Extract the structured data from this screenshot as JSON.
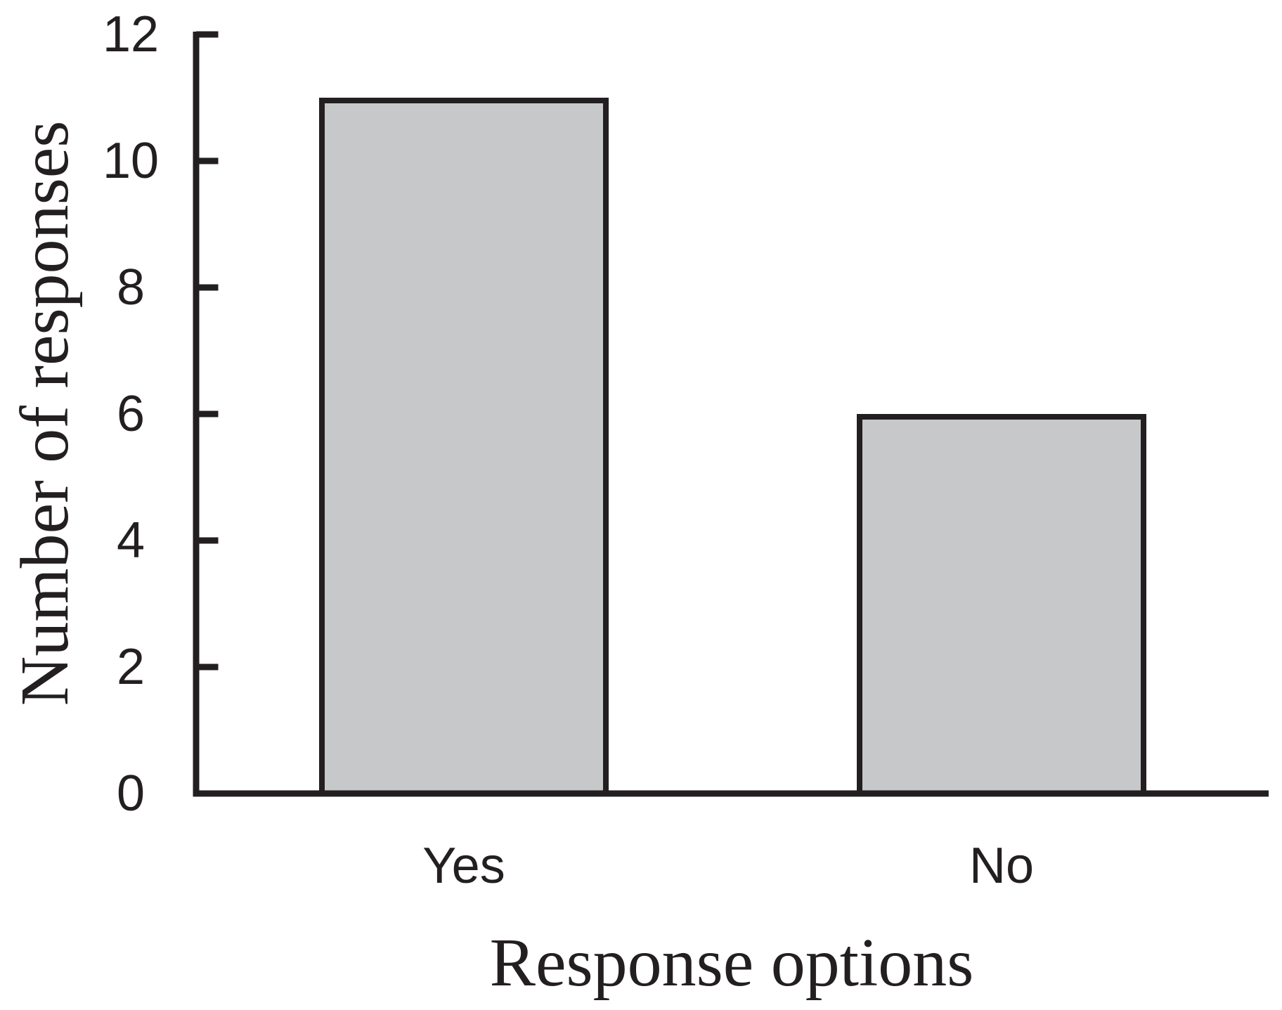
{
  "figure": {
    "background": "#ffffff",
    "ink": "#231f20"
  },
  "chart_data": {
    "type": "bar",
    "title": "",
    "categories": [
      "Yes",
      "No"
    ],
    "values": [
      11,
      6
    ],
    "xlabel": "Response options",
    "ylabel": "Number of responses",
    "yticks": [
      0,
      2,
      4,
      6,
      8,
      10,
      12
    ],
    "ylim": [
      0,
      12
    ],
    "grid": false,
    "legend": "none",
    "bar_fill": "#c7c8ca",
    "bar_border": "#231f20",
    "axis_color": "#231f20"
  }
}
